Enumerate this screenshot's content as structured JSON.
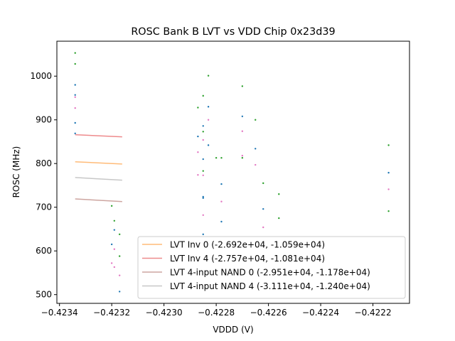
{
  "chart_data": {
    "type": "scatter",
    "title": "ROSC Bank B LVT vs VDD Chip 0x23d39",
    "xlabel": "VDDD (V)",
    "ylabel": "ROSC (MHz)",
    "xlim": [
      -0.42341,
      -0.42206
    ],
    "ylim": [
      480,
      1080
    ],
    "xticks": [
      -0.4234,
      -0.4232,
      -0.423,
      -0.4228,
      -0.4226,
      -0.4224,
      -0.4222
    ],
    "xtick_labels": [
      "−0.4234",
      "−0.4232",
      "−0.4230",
      "−0.4228",
      "−0.4226",
      "−0.4224",
      "−0.4222"
    ],
    "yticks": [
      500,
      600,
      700,
      800,
      900,
      1000
    ],
    "ytick_labels": [
      "500",
      "600",
      "700",
      "800",
      "900",
      "1000"
    ],
    "grid": false,
    "legend_position": "lower-right",
    "fit_lines": [
      {
        "name": "LVT Inv 0 (-2.692e+04, -1.059e+04)",
        "color": "#ffbb78",
        "x": [
          -0.42334,
          -0.42316
        ],
        "y": [
          804,
          799
        ]
      },
      {
        "name": "LVT Inv 4 (-2.757e+04, -1.081e+04)",
        "color": "#ee8a8c",
        "x": [
          -0.42334,
          -0.42316
        ],
        "y": [
          866,
          861
        ]
      },
      {
        "name": "LVT 4-input NAND 0 (-2.951e+04, -1.178e+04)",
        "color": "#cda5a0",
        "x": [
          -0.42334,
          -0.42316
        ],
        "y": [
          719,
          713
        ]
      },
      {
        "name": "LVT 4-input NAND 4 (-3.111e+04, -1.240e+04)",
        "color": "#c7c7c7",
        "x": [
          -0.42334,
          -0.42316
        ],
        "y": [
          768,
          762
        ]
      }
    ],
    "scatter_series": [
      {
        "name": "green",
        "color": "#2ca02c",
        "x": [
          -0.42334,
          -0.42334,
          -0.4232,
          -0.42319,
          -0.42317,
          -0.42317,
          -0.42287,
          -0.42285,
          -0.42285,
          -0.42285,
          -0.42283,
          -0.4228,
          -0.42278,
          -0.4227,
          -0.4227,
          -0.42265,
          -0.42262,
          -0.42256,
          -0.42256,
          -0.42214,
          -0.42214
        ],
        "y": [
          1053,
          1028,
          703,
          669,
          638,
          588,
          928,
          955,
          873,
          783,
          1001,
          813,
          813,
          977,
          813,
          900,
          755,
          730,
          675,
          842,
          691
        ]
      },
      {
        "name": "blue",
        "color": "#1f77b4",
        "x": [
          -0.42334,
          -0.42334,
          -0.42334,
          -0.42334,
          -0.4232,
          -0.42319,
          -0.42317,
          -0.42287,
          -0.42285,
          -0.42285,
          -0.42285,
          -0.42285,
          -0.42285,
          -0.42283,
          -0.42283,
          -0.42278,
          -0.42278,
          -0.4227,
          -0.42265,
          -0.42262,
          -0.42214
        ],
        "y": [
          980,
          957,
          893,
          869,
          615,
          648,
          507,
          862,
          886,
          810,
          724,
          721,
          638,
          930,
          842,
          753,
          667,
          908,
          834,
          696,
          779
        ]
      },
      {
        "name": "pink",
        "color": "#e377c2",
        "x": [
          -0.42334,
          -0.42334,
          -0.4232,
          -0.42319,
          -0.42319,
          -0.42317,
          -0.42287,
          -0.42287,
          -0.42285,
          -0.42285,
          -0.42285,
          -0.42283,
          -0.42278,
          -0.4227,
          -0.4227,
          -0.42265,
          -0.42262,
          -0.42214
        ],
        "y": [
          952,
          927,
          572,
          604,
          563,
          544,
          826,
          774,
          854,
          773,
          682,
          900,
          713,
          874,
          818,
          797,
          654,
          741
        ]
      }
    ]
  }
}
